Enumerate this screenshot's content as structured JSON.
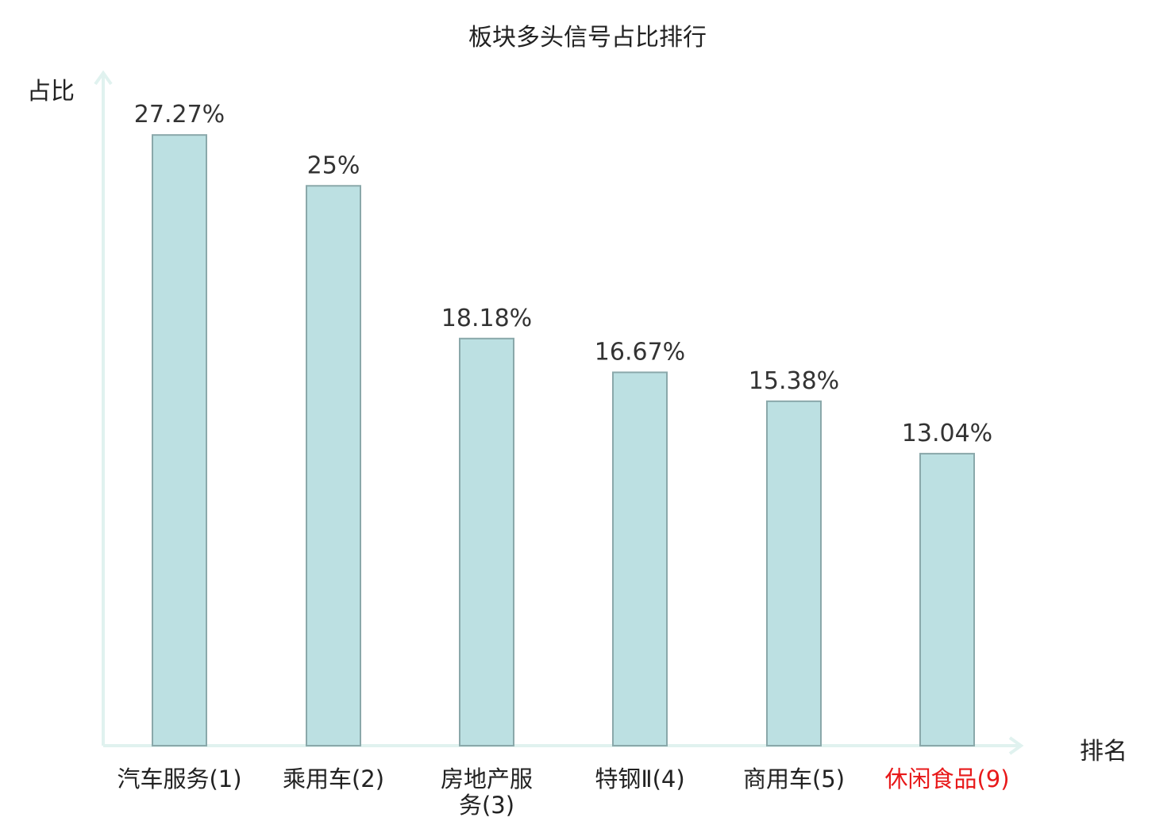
{
  "chart_data": {
    "type": "bar",
    "title": "板块多头信号占比排行",
    "ylabel": "占比",
    "xlabel": "排名",
    "categories": [
      "汽车服务(1)",
      "乘用车(2)",
      "房地产服务(3)",
      "特钢Ⅱ(4)",
      "商用车(5)",
      "休闲食品(9)"
    ],
    "values": [
      27.27,
      25,
      18.18,
      16.67,
      15.38,
      13.04
    ],
    "value_labels": [
      "27.27%",
      "25%",
      "18.18%",
      "16.67%",
      "15.38%",
      "13.04%"
    ],
    "highlight_index": 5,
    "ylim": [
      0,
      30
    ],
    "grid": false,
    "colors": {
      "bar_fill": "#bce0e2",
      "bar_stroke": "#8aa8aa",
      "axis": "#e0f2ef",
      "highlight_label": "#e8191a"
    }
  }
}
